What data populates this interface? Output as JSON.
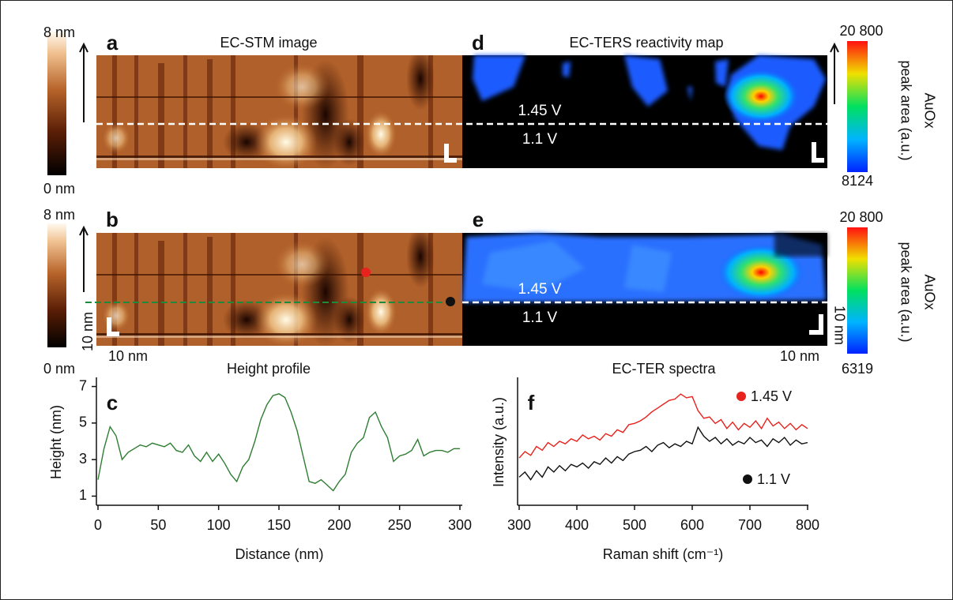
{
  "images": {
    "a": {
      "label": "a",
      "title": "EC-STM image",
      "colorbar": [
        {
          "value": 8,
          "label": "8 nm"
        },
        {
          "value": 0,
          "label": "0 nm"
        }
      ]
    },
    "d": {
      "label": "d",
      "title": "EC-TERS reactivity map",
      "upper_potential": "1.45 V",
      "lower_potential": "1.1 V",
      "colorbar": [
        {
          "value": 20800,
          "label": "20 800"
        },
        8124
      ],
      "colorbar_title": [
        "AuOx",
        "peak area (a.u.)"
      ]
    },
    "b": {
      "label": "b",
      "colorbar": [
        {
          "value": 8,
          "label": "8 nm"
        },
        {
          "value": 0,
          "label": "0 nm"
        }
      ],
      "scale_y": "10 nm",
      "scale_x": "10 nm"
    },
    "e": {
      "label": "e",
      "upper_potential": "1.45 V",
      "lower_potential": "1.1 V",
      "scale_y": "10 nm",
      "scale_x": "10 nm",
      "colorbar": [
        {
          "value": 20800,
          "label": "20 800"
        },
        6319
      ],
      "colorbar_title": [
        "AuOx",
        "peak area (a.u.)"
      ]
    }
  },
  "chart_data": [
    {
      "type": "line",
      "label": "c",
      "title": "Height profile",
      "xlabel": "Distance (nm)",
      "ylabel": "Height (nm)",
      "color": "#2e7d32",
      "x": [
        0,
        5,
        10,
        15,
        20,
        25,
        30,
        35,
        40,
        45,
        50,
        55,
        60,
        65,
        70,
        75,
        80,
        85,
        90,
        95,
        100,
        105,
        110,
        115,
        120,
        125,
        130,
        135,
        140,
        145,
        150,
        155,
        160,
        165,
        170,
        175,
        180,
        185,
        190,
        195,
        200,
        205,
        210,
        215,
        220,
        225,
        230,
        235,
        240,
        245,
        250,
        255,
        260,
        265,
        270,
        275,
        280,
        285,
        290,
        295,
        300
      ],
      "values": [
        1.9,
        3.6,
        4.8,
        4.3,
        3.0,
        3.4,
        3.6,
        3.8,
        3.7,
        3.9,
        3.8,
        3.7,
        3.9,
        3.5,
        3.4,
        3.8,
        3.2,
        2.9,
        3.4,
        2.9,
        3.3,
        2.8,
        2.2,
        1.8,
        2.6,
        3.0,
        4.0,
        5.2,
        6.0,
        6.5,
        6.6,
        6.4,
        5.6,
        4.6,
        3.2,
        1.8,
        1.7,
        1.9,
        1.6,
        1.3,
        1.8,
        2.2,
        3.4,
        3.9,
        4.2,
        5.3,
        5.6,
        4.8,
        4.2,
        2.9,
        3.2,
        3.3,
        3.5,
        4.1,
        3.2,
        3.4,
        3.5,
        3.5,
        3.4,
        3.6,
        3.6
      ],
      "xlim": [
        0,
        300
      ],
      "xticks": [
        0,
        50,
        100,
        150,
        200,
        250,
        300
      ],
      "ylim": [
        0.5,
        7.5
      ],
      "yticks": [
        1,
        3,
        5,
        7
      ]
    },
    {
      "type": "line",
      "label": "f",
      "title": "EC-TER spectra",
      "xlabel": "Raman shift (cm⁻¹)",
      "ylabel": "Intensity (a.u.)",
      "x": [
        300,
        310,
        320,
        330,
        340,
        350,
        360,
        370,
        380,
        390,
        400,
        410,
        420,
        430,
        440,
        450,
        460,
        470,
        480,
        490,
        500,
        510,
        520,
        530,
        540,
        550,
        560,
        570,
        580,
        590,
        600,
        610,
        620,
        630,
        640,
        650,
        660,
        670,
        680,
        690,
        700,
        710,
        720,
        730,
        740,
        750,
        760,
        770,
        780,
        790,
        800
      ],
      "series": [
        {
          "name": "1.45 V",
          "color": "#e8221c",
          "values": [
            3.7,
            4.2,
            3.9,
            4.6,
            4.3,
            4.9,
            4.6,
            5.0,
            4.8,
            5.2,
            5.0,
            5.5,
            5.2,
            5.4,
            5.1,
            5.6,
            5.4,
            5.9,
            5.7,
            6.3,
            6.4,
            6.6,
            6.9,
            7.3,
            7.6,
            7.9,
            8.2,
            8.3,
            8.7,
            8.4,
            8.5,
            7.4,
            6.8,
            6.9,
            6.4,
            6.7,
            6.0,
            6.5,
            5.9,
            6.4,
            6.1,
            6.6,
            6.0,
            6.8,
            6.2,
            6.5,
            6.0,
            6.4,
            5.9,
            6.3,
            6.0
          ]
        },
        {
          "name": "1.1 V",
          "color": "#111111",
          "values": [
            2.2,
            2.6,
            2.0,
            2.7,
            2.2,
            3.0,
            2.6,
            3.1,
            2.7,
            3.2,
            3.0,
            3.3,
            2.9,
            3.4,
            3.2,
            3.7,
            3.3,
            3.8,
            3.5,
            4.0,
            4.2,
            4.3,
            4.6,
            4.2,
            4.7,
            4.9,
            4.5,
            4.8,
            4.6,
            5.0,
            4.8,
            6.1,
            5.4,
            5.0,
            5.3,
            4.8,
            5.2,
            4.7,
            5.0,
            4.8,
            5.3,
            4.9,
            5.1,
            4.6,
            5.2,
            4.9,
            5.3,
            4.7,
            5.1,
            4.8,
            4.9
          ]
        }
      ],
      "xlim": [
        300,
        800
      ],
      "xticks": [
        300,
        400,
        500,
        600,
        700,
        800
      ],
      "ylim": [
        0,
        10
      ]
    }
  ]
}
